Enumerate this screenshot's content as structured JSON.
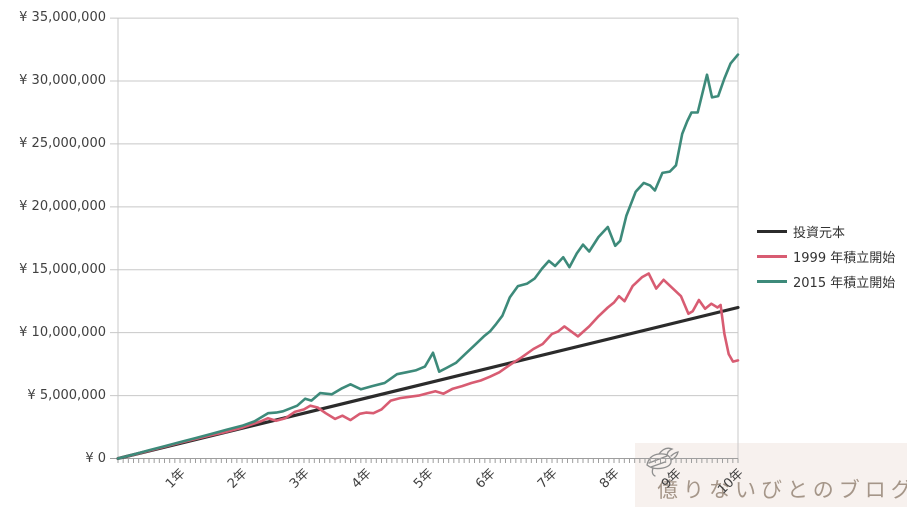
{
  "watermark": {
    "text": "億りないびとのブログ",
    "logo_icon": "whale-doodle-icon"
  },
  "colors": {
    "principal_line": "#2b2b2b",
    "series_1999": "#d85c72",
    "series_2015": "#3d8a7a",
    "gridline": "#c8c8c8",
    "axis": "#9e9e9e",
    "label_text": "#404040",
    "watermark_bg": "#f7f1ee",
    "watermark_text": "#a59689"
  },
  "chart_data": {
    "type": "line",
    "title": "",
    "legend_position": "right",
    "grid": "horizontal-only",
    "y_axis": {
      "lim": [
        0,
        35000000
      ],
      "tick_step": 5000000,
      "tick_labels": [
        "¥ 0",
        "¥ 5,000,000",
        "¥ 10,000,000",
        "¥ 15,000,000",
        "¥ 20,000,000",
        "¥ 25,000,000",
        "¥ 30,000,000",
        "¥ 35,000,000"
      ]
    },
    "x_axis": {
      "range_years": [
        0,
        10
      ],
      "tick_labels": [
        "1年",
        "2年",
        "3年",
        "4年",
        "5年",
        "6年",
        "7年",
        "8年",
        "9年",
        "10年"
      ],
      "minor_ticks_per_year": 12,
      "label_rotation_deg": -45
    },
    "y_values_unit": "JPY_millions",
    "series": [
      {
        "name": "投資元本",
        "color": "#2b2b2b",
        "width": 3.2,
        "points": [
          [
            0,
            0
          ],
          [
            10,
            12.0
          ]
        ]
      },
      {
        "name": "1999 年積立開始",
        "color": "#d85c72",
        "width": 2.6,
        "points": [
          [
            0,
            0
          ],
          [
            0.25,
            0.3
          ],
          [
            0.5,
            0.62
          ],
          [
            0.75,
            0.93
          ],
          [
            1,
            1.25
          ],
          [
            1.25,
            1.55
          ],
          [
            1.5,
            1.85
          ],
          [
            1.75,
            2.12
          ],
          [
            2,
            2.45
          ],
          [
            2.15,
            2.7
          ],
          [
            2.3,
            2.95
          ],
          [
            2.42,
            3.2
          ],
          [
            2.55,
            3.0
          ],
          [
            2.7,
            3.2
          ],
          [
            2.85,
            3.7
          ],
          [
            3.0,
            3.9
          ],
          [
            3.1,
            4.2
          ],
          [
            3.22,
            4.05
          ],
          [
            3.35,
            3.6
          ],
          [
            3.5,
            3.15
          ],
          [
            3.62,
            3.4
          ],
          [
            3.75,
            3.05
          ],
          [
            3.9,
            3.55
          ],
          [
            4.0,
            3.65
          ],
          [
            4.12,
            3.6
          ],
          [
            4.25,
            3.9
          ],
          [
            4.4,
            4.6
          ],
          [
            4.55,
            4.8
          ],
          [
            4.7,
            4.9
          ],
          [
            4.85,
            5.0
          ],
          [
            5.0,
            5.2
          ],
          [
            5.12,
            5.35
          ],
          [
            5.25,
            5.15
          ],
          [
            5.4,
            5.55
          ],
          [
            5.55,
            5.75
          ],
          [
            5.7,
            6.0
          ],
          [
            5.85,
            6.2
          ],
          [
            6.0,
            6.5
          ],
          [
            6.15,
            6.85
          ],
          [
            6.25,
            7.2
          ],
          [
            6.37,
            7.6
          ],
          [
            6.5,
            8.0
          ],
          [
            6.7,
            8.7
          ],
          [
            6.85,
            9.1
          ],
          [
            7.0,
            9.9
          ],
          [
            7.1,
            10.1
          ],
          [
            7.2,
            10.5
          ],
          [
            7.42,
            9.7
          ],
          [
            7.6,
            10.5
          ],
          [
            7.75,
            11.3
          ],
          [
            7.9,
            12.0
          ],
          [
            8.0,
            12.4
          ],
          [
            8.08,
            12.9
          ],
          [
            8.17,
            12.5
          ],
          [
            8.3,
            13.7
          ],
          [
            8.45,
            14.4
          ],
          [
            8.56,
            14.7
          ],
          [
            8.68,
            13.5
          ],
          [
            8.8,
            14.2
          ],
          [
            8.95,
            13.5
          ],
          [
            9.08,
            12.9
          ],
          [
            9.2,
            11.5
          ],
          [
            9.27,
            11.7
          ],
          [
            9.37,
            12.6
          ],
          [
            9.47,
            11.9
          ],
          [
            9.57,
            12.3
          ],
          [
            9.67,
            12.0
          ],
          [
            9.72,
            12.2
          ],
          [
            9.78,
            9.9
          ],
          [
            9.85,
            8.3
          ],
          [
            9.92,
            7.7
          ],
          [
            10,
            7.8
          ]
        ]
      },
      {
        "name": "2015 年積立開始",
        "color": "#3d8a7a",
        "width": 2.6,
        "points": [
          [
            0,
            0
          ],
          [
            0.25,
            0.32
          ],
          [
            0.5,
            0.65
          ],
          [
            0.75,
            0.98
          ],
          [
            1,
            1.3
          ],
          [
            1.25,
            1.62
          ],
          [
            1.5,
            1.95
          ],
          [
            1.75,
            2.28
          ],
          [
            2,
            2.6
          ],
          [
            2.2,
            2.95
          ],
          [
            2.42,
            3.6
          ],
          [
            2.55,
            3.65
          ],
          [
            2.66,
            3.75
          ],
          [
            2.89,
            4.2
          ],
          [
            3.02,
            4.75
          ],
          [
            3.12,
            4.6
          ],
          [
            3.26,
            5.2
          ],
          [
            3.45,
            5.1
          ],
          [
            3.6,
            5.55
          ],
          [
            3.75,
            5.9
          ],
          [
            3.92,
            5.5
          ],
          [
            4.1,
            5.75
          ],
          [
            4.3,
            6.0
          ],
          [
            4.5,
            6.7
          ],
          [
            4.65,
            6.85
          ],
          [
            4.8,
            7.0
          ],
          [
            4.95,
            7.3
          ],
          [
            5.08,
            8.4
          ],
          [
            5.18,
            6.9
          ],
          [
            5.3,
            7.2
          ],
          [
            5.45,
            7.6
          ],
          [
            5.6,
            8.3
          ],
          [
            5.75,
            9.0
          ],
          [
            5.9,
            9.7
          ],
          [
            6.0,
            10.1
          ],
          [
            6.1,
            10.7
          ],
          [
            6.2,
            11.35
          ],
          [
            6.32,
            12.8
          ],
          [
            6.45,
            13.7
          ],
          [
            6.6,
            13.9
          ],
          [
            6.72,
            14.3
          ],
          [
            6.84,
            15.1
          ],
          [
            6.95,
            15.7
          ],
          [
            7.05,
            15.3
          ],
          [
            7.18,
            16.0
          ],
          [
            7.28,
            15.2
          ],
          [
            7.4,
            16.3
          ],
          [
            7.5,
            17.0
          ],
          [
            7.6,
            16.45
          ],
          [
            7.75,
            17.6
          ],
          [
            7.9,
            18.4
          ],
          [
            8.02,
            16.9
          ],
          [
            8.1,
            17.3
          ],
          [
            8.2,
            19.3
          ],
          [
            8.35,
            21.2
          ],
          [
            8.48,
            21.9
          ],
          [
            8.58,
            21.7
          ],
          [
            8.66,
            21.3
          ],
          [
            8.78,
            22.7
          ],
          [
            8.9,
            22.8
          ],
          [
            9.0,
            23.3
          ],
          [
            9.1,
            25.8
          ],
          [
            9.18,
            26.8
          ],
          [
            9.25,
            27.5
          ],
          [
            9.35,
            27.5
          ],
          [
            9.42,
            28.9
          ],
          [
            9.5,
            30.5
          ],
          [
            9.58,
            28.7
          ],
          [
            9.68,
            28.8
          ],
          [
            9.78,
            30.2
          ],
          [
            9.88,
            31.4
          ],
          [
            10,
            32.1
          ]
        ]
      }
    ]
  }
}
